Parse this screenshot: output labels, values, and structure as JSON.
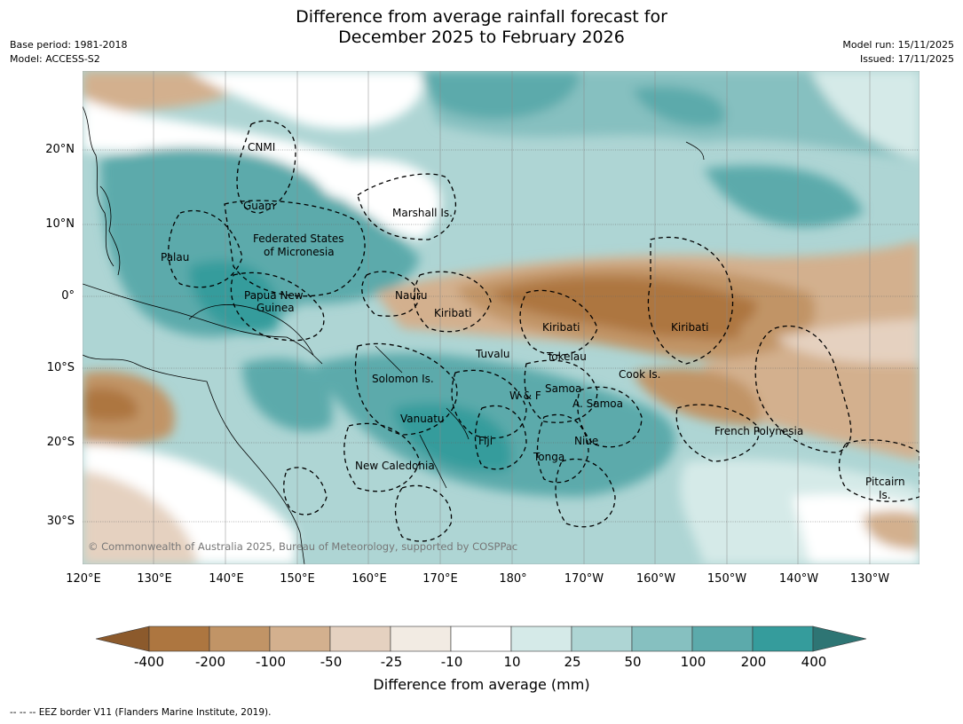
{
  "header": {
    "title_line1": "Difference from average rainfall forecast for",
    "title_line2": "December 2025 to February 2026",
    "base_period": "Base period: 1981-2018",
    "model": "Model: ACCESS-S2",
    "model_run": "Model run: 15/11/2025",
    "issued": "Issued: 17/11/2025"
  },
  "map": {
    "copyright": "© Commonwealth of Australia 2025, Bureau of Meteorology, supported by COSPPac",
    "lat_labels": [
      "20°N",
      "10°N",
      "0°",
      "10°S",
      "20°S",
      "30°S"
    ],
    "lon_labels": [
      "120°E",
      "130°E",
      "140°E",
      "150°E",
      "160°E",
      "170°E",
      "180°",
      "170°W",
      "160°W",
      "150°W",
      "140°W",
      "130°W"
    ],
    "regions": [
      {
        "id": "cnmi",
        "text": "CNMI"
      },
      {
        "id": "guam",
        "text": "Guam"
      },
      {
        "id": "marshall",
        "text": "Marshall Is."
      },
      {
        "id": "fsm1",
        "text": "Federated States"
      },
      {
        "id": "fsm2",
        "text": "of Micronesia"
      },
      {
        "id": "palau",
        "text": "Palau"
      },
      {
        "id": "png1",
        "text": "Papua New"
      },
      {
        "id": "png2",
        "text": "Guinea"
      },
      {
        "id": "nauru",
        "text": "Nauru"
      },
      {
        "id": "kiribati_w",
        "text": "Kiribati"
      },
      {
        "id": "kiribati_c",
        "text": "Kiribati"
      },
      {
        "id": "kiribati_e",
        "text": "Kiribati"
      },
      {
        "id": "tuvalu",
        "text": "Tuvalu"
      },
      {
        "id": "tokelau",
        "text": "Tokelau"
      },
      {
        "id": "cook",
        "text": "Cook Is."
      },
      {
        "id": "solomon",
        "text": "Solomon Is."
      },
      {
        "id": "samoa",
        "text": "Samoa"
      },
      {
        "id": "wf",
        "text": "W & F"
      },
      {
        "id": "asamoa",
        "text": "A. Samoa"
      },
      {
        "id": "vanuatu",
        "text": "Vanuatu"
      },
      {
        "id": "fiji",
        "text": "Fiji"
      },
      {
        "id": "niue",
        "text": "Niue"
      },
      {
        "id": "tonga",
        "text": "Tonga"
      },
      {
        "id": "frpoly",
        "text": "French Polynesia"
      },
      {
        "id": "newcal",
        "text": "New Caledonia"
      },
      {
        "id": "pitcairn1",
        "text": "Pitcairn"
      },
      {
        "id": "pitcairn2",
        "text": "Is."
      }
    ]
  },
  "colorbar": {
    "colors": [
      "#8c5a2c",
      "#ad7640",
      "#c19466",
      "#d3b08e",
      "#e5d1c0",
      "#f2ebe3",
      "#ffffff",
      "#d5eae8",
      "#aed5d4",
      "#86c0c0",
      "#5caaab",
      "#359c9c",
      "#2e7574"
    ],
    "ticks": [
      "-400",
      "-200",
      "-100",
      "-50",
      "-25",
      "-10",
      "10",
      "25",
      "50",
      "100",
      "200",
      "400"
    ],
    "label": "Difference from average (mm)"
  },
  "footnote": "--  --  -- EEZ border V11 (Flanders Marine Institute, 2019)."
}
